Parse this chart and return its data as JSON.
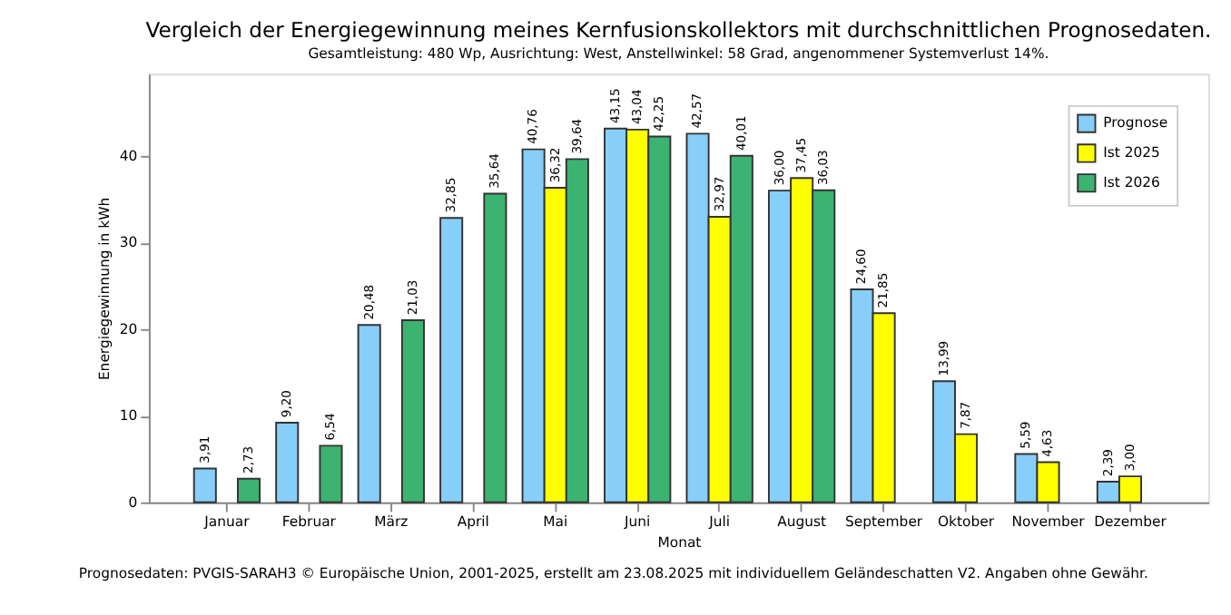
{
  "chart_data": {
    "type": "bar",
    "title": "Vergleich der Energiegewinnung meines Kernfusionskollektors mit durchschnittlichen Prognosedaten.",
    "subtitle": "Gesamtleistung: 480 Wp, Ausrichtung: West, Anstellwinkel: 58 Grad, angenommener Systemverlust 14%.",
    "xlabel": "Monat",
    "ylabel": "Energiegewinnung in kWh",
    "categories": [
      "Januar",
      "Februar",
      "März",
      "April",
      "Mai",
      "Juni",
      "Juli",
      "August",
      "September",
      "Oktober",
      "November",
      "Dezember"
    ],
    "series": [
      {
        "name": "Prognose",
        "color": "#87cefa",
        "values": [
          3.91,
          9.2,
          20.48,
          32.85,
          40.76,
          43.15,
          42.57,
          36.0,
          24.6,
          13.99,
          5.59,
          2.39
        ],
        "value_labels": [
          "3,91",
          "9,20",
          "20,48",
          "32,85",
          "40,76",
          "43,15",
          "42,57",
          "36,00",
          "24,60",
          "13,99",
          "5,59",
          "2,39"
        ]
      },
      {
        "name": "Ist 2025",
        "color": "#ffff00",
        "values": [
          null,
          null,
          null,
          null,
          36.32,
          43.04,
          32.97,
          37.45,
          21.85,
          7.87,
          4.63,
          3.0
        ],
        "value_labels": [
          null,
          null,
          null,
          null,
          "36,32",
          "43,04",
          "32,97",
          "37,45",
          "21,85",
          "7,87",
          "4,63",
          "3,00"
        ]
      },
      {
        "name": "Ist 2026",
        "color": "#3cb371",
        "values": [
          2.73,
          6.54,
          21.03,
          35.64,
          39.64,
          42.25,
          40.01,
          36.03,
          null,
          null,
          null,
          null
        ],
        "value_labels": [
          "2,73",
          "6,54",
          "21,03",
          "35,64",
          "39,64",
          "42,25",
          "40,01",
          "36,03",
          null,
          null,
          null,
          null
        ]
      }
    ],
    "ylim": [
      0,
      49.5
    ],
    "yticks": [
      0,
      10,
      20,
      30,
      40
    ],
    "grid": false,
    "legend": "top right",
    "annotations": [
      "Prognosedaten: PVGIS-SARAH3 © Europäische Union, 2001-2025, erstellt am 23.08.2025 mit individuellem Geländeschatten V2. Angaben ohne Gewähr."
    ]
  }
}
